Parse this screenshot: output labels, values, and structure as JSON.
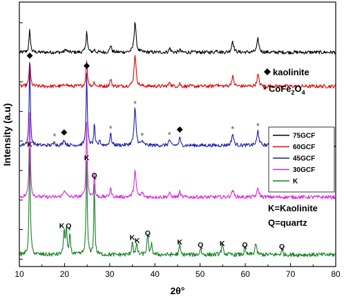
{
  "chart_data": {
    "type": "line",
    "xlabel": "2θ°",
    "ylabel": "Intensity (a.u)",
    "xlim": [
      10,
      80
    ],
    "x_ticks": [
      10,
      20,
      30,
      40,
      50,
      60,
      70,
      80
    ],
    "grid": false,
    "series": [
      {
        "name": "75GCF",
        "color": "#000000",
        "baseline": 7.0,
        "noise": 0.06,
        "peaks": [
          [
            12.3,
            0.75,
            0.35
          ],
          [
            20.3,
            0.1,
            0.5
          ],
          [
            24.9,
            0.75,
            0.35
          ],
          [
            26.6,
            0.1,
            0.3
          ],
          [
            30.2,
            0.25,
            0.4
          ],
          [
            35.6,
            1.05,
            0.5
          ],
          [
            43.3,
            0.15,
            0.4
          ],
          [
            45.5,
            0.1,
            0.3
          ],
          [
            53.7,
            0.1,
            0.4
          ],
          [
            57.2,
            0.4,
            0.5
          ],
          [
            62.8,
            0.45,
            0.5
          ]
        ]
      },
      {
        "name": "60GCF",
        "color": "#e00000",
        "baseline": 5.85,
        "noise": 0.06,
        "peaks": [
          [
            12.3,
            0.85,
            0.35
          ],
          [
            20.3,
            0.1,
            0.5
          ],
          [
            24.9,
            0.9,
            0.35
          ],
          [
            26.6,
            0.15,
            0.3
          ],
          [
            30.2,
            0.25,
            0.4
          ],
          [
            35.6,
            1.1,
            0.5
          ],
          [
            43.3,
            0.15,
            0.4
          ],
          [
            45.5,
            0.1,
            0.3
          ],
          [
            53.7,
            0.1,
            0.4
          ],
          [
            57.2,
            0.35,
            0.5
          ],
          [
            62.8,
            0.4,
            0.5
          ]
        ]
      },
      {
        "name": "45GCF",
        "color": "#1a1aa8",
        "baseline": 3.85,
        "noise": 0.06,
        "peaks": [
          [
            12.3,
            2.8,
            0.3
          ],
          [
            17.8,
            0.15,
            0.3
          ],
          [
            19.9,
            0.2,
            0.5
          ],
          [
            24.9,
            2.45,
            0.3
          ],
          [
            26.6,
            0.8,
            0.25
          ],
          [
            27.8,
            0.2,
            0.3
          ],
          [
            30.2,
            0.4,
            0.4
          ],
          [
            35.6,
            1.25,
            0.5
          ],
          [
            37.2,
            0.15,
            0.4
          ],
          [
            43.2,
            0.2,
            0.4
          ],
          [
            45.5,
            0.3,
            0.3
          ],
          [
            57.2,
            0.4,
            0.5
          ],
          [
            62.8,
            0.5,
            0.5
          ]
        ]
      },
      {
        "name": "30GCF",
        "color": "#e020e0",
        "baseline": 2.1,
        "noise": 0.06,
        "peaks": [
          [
            12.3,
            2.95,
            0.3
          ],
          [
            20.0,
            0.25,
            0.6
          ],
          [
            24.9,
            2.6,
            0.3
          ],
          [
            26.6,
            0.85,
            0.25
          ],
          [
            30.2,
            0.3,
            0.4
          ],
          [
            35.6,
            0.9,
            0.5
          ],
          [
            37.2,
            0.15,
            0.4
          ],
          [
            43.2,
            0.15,
            0.4
          ],
          [
            45.5,
            0.2,
            0.3
          ],
          [
            57.2,
            0.25,
            0.5
          ],
          [
            62.8,
            0.3,
            0.5
          ]
        ]
      },
      {
        "name": "K",
        "color": "#10801e",
        "baseline": 0.15,
        "noise": 0.07,
        "peaks": [
          [
            12.3,
            3.65,
            0.3
          ],
          [
            19.9,
            0.9,
            0.3
          ],
          [
            20.4,
            0.9,
            0.3
          ],
          [
            21.2,
            0.75,
            0.3
          ],
          [
            24.9,
            3.2,
            0.3
          ],
          [
            26.6,
            2.6,
            0.25
          ],
          [
            35.0,
            0.5,
            0.3
          ],
          [
            36.0,
            0.4,
            0.3
          ],
          [
            38.4,
            0.65,
            0.4
          ],
          [
            39.3,
            0.35,
            0.3
          ],
          [
            45.5,
            0.35,
            0.3
          ],
          [
            50.1,
            0.25,
            0.3
          ],
          [
            54.9,
            0.3,
            0.5
          ],
          [
            59.9,
            0.25,
            0.3
          ],
          [
            62.3,
            0.4,
            0.4
          ],
          [
            68.1,
            0.2,
            0.3
          ]
        ]
      }
    ],
    "legend": {
      "position": "right",
      "items": [
        "75GCF",
        "60GCF",
        "45GCF",
        "30GCF",
        "K"
      ]
    },
    "annotations": {
      "kaolinite_marker": "kaolinite",
      "cofe_marker_prefix": "CoFe",
      "cofe_sub1": "2",
      "cofe_mid": "O",
      "cofe_sub2": "4",
      "k_legend": "K=Kaolinite",
      "q_legend": "Q=quartz"
    },
    "peak_labels": [
      {
        "text": "K",
        "x": 12.3,
        "y": 3.8
      },
      {
        "text": "K",
        "x": 19.4,
        "y": 1.05
      },
      {
        "text": "Q",
        "x": 20.9,
        "y": 1.05
      },
      {
        "text": "K",
        "x": 24.9,
        "y": 3.35
      },
      {
        "text": "Q",
        "x": 26.6,
        "y": 2.75
      },
      {
        "text": "K",
        "x": 35.0,
        "y": 0.65
      },
      {
        "text": "K",
        "x": 36.1,
        "y": 0.55
      },
      {
        "text": "Q",
        "x": 38.4,
        "y": 0.8
      },
      {
        "text": "K",
        "x": 45.5,
        "y": 0.5
      },
      {
        "text": "Q",
        "x": 50.1,
        "y": 0.4
      },
      {
        "text": "K",
        "x": 54.9,
        "y": 0.45
      },
      {
        "text": "Q",
        "x": 59.9,
        "y": 0.4
      },
      {
        "text": "Q",
        "x": 68.1,
        "y": 0.35
      }
    ],
    "diamond_markers": [
      12.3,
      19.9,
      24.9,
      45.5
    ],
    "star_markers": [
      17.8,
      30.2,
      35.6,
      37.2,
      43.2,
      57.2,
      62.8
    ]
  }
}
